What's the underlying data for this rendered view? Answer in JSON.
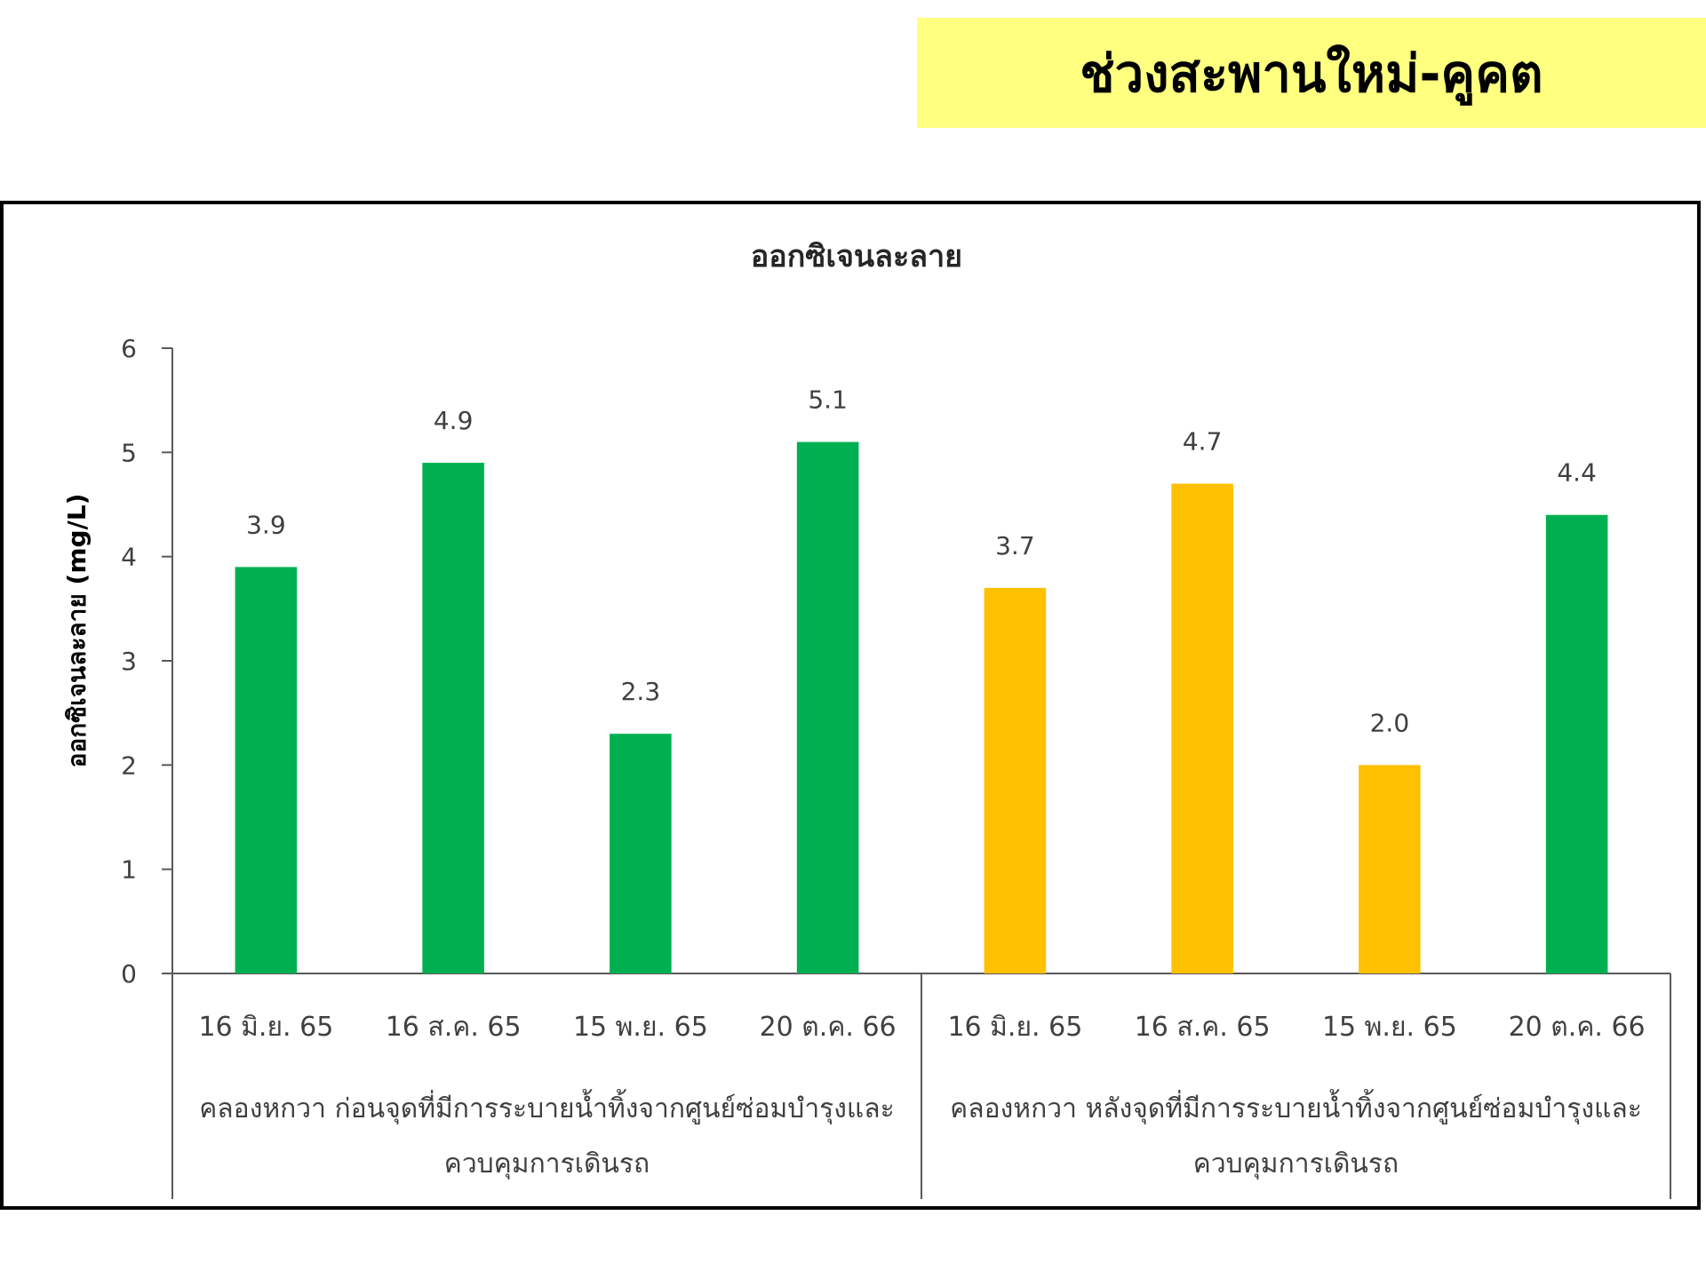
{
  "banner": {
    "title": "ช่วงสะพานใหม่-คูคต",
    "color": "#ffff80"
  },
  "chart_data": {
    "type": "bar",
    "title": "ออกซิเจนละลาย",
    "xlabel": "",
    "ylabel": "ออกซิเจนละลาย (mg/L)",
    "ylim": [
      0,
      6
    ],
    "yticks": [
      0,
      1,
      2,
      3,
      4,
      5,
      6
    ],
    "grid": false,
    "legend": "none",
    "groups": [
      {
        "label_lines": [
          "คลองหกวา ก่อนจุดที่มีการระบายน้ำทิ้งจากศูนย์ซ่อมบำรุงและ",
          "ควบคุมการเดินรถ"
        ],
        "categories": [
          "16 มิ.ย. 65",
          "16 ส.ค. 65",
          "15 พ.ย. 65",
          "20 ต.ค. 66"
        ],
        "values": [
          3.9,
          4.9,
          2.3,
          5.1
        ],
        "value_labels": [
          "3.9",
          "4.9",
          "2.3",
          "5.1"
        ],
        "colors": [
          "#00b050",
          "#00b050",
          "#00b050",
          "#00b050"
        ]
      },
      {
        "label_lines": [
          "คลองหกวา หลังจุดที่มีการระบายน้ำทิ้งจากศูนย์ซ่อมบำรุงและ",
          "ควบคุมการเดินรถ"
        ],
        "categories": [
          "16 มิ.ย. 65",
          "16 ส.ค. 65",
          "15 พ.ย. 65",
          "20 ต.ค. 66"
        ],
        "values": [
          3.7,
          4.7,
          2.0,
          4.4
        ],
        "value_labels": [
          "3.7",
          "4.7",
          "2.0",
          "4.4"
        ],
        "colors": [
          "#ffc000",
          "#ffc000",
          "#ffc000",
          "#00b050"
        ]
      }
    ]
  }
}
